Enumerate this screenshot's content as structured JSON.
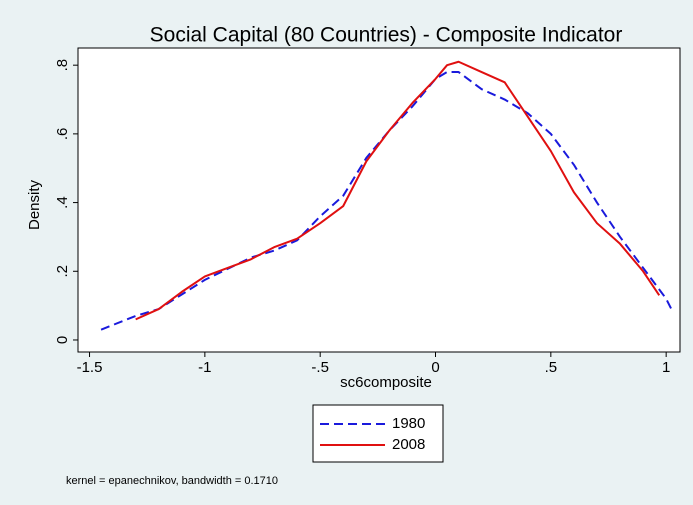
{
  "chart_data": {
    "type": "line",
    "title": "Social Capital (80 Countries) - Composite Indicator",
    "x_label": "sc6composite",
    "y_label": "Density",
    "note": "kernel = epanechnikov, bandwidth = 0.1710",
    "xlim": [
      -1.55,
      1.06
    ],
    "ylim": [
      -0.035,
      0.85
    ],
    "xticks": [
      -1.5,
      -1,
      {
        "value": -0.5,
        "label": "-.5"
      },
      0,
      {
        "value": 0.5,
        "label": ".5"
      },
      1
    ],
    "yticks": [
      0,
      {
        "value": 0.2,
        "label": ".2"
      },
      {
        "value": 0.4,
        "label": ".4"
      },
      {
        "value": 0.6,
        "label": ".6"
      },
      {
        "value": 0.8,
        "label": ".8"
      }
    ],
    "series": [
      {
        "name": "1980",
        "color": "#1a1adc",
        "dash": true,
        "x": [
          -1.45,
          -1.3,
          -1.2,
          -1.0,
          -0.8,
          -0.7,
          -0.6,
          -0.5,
          -0.4,
          -0.3,
          -0.2,
          -0.1,
          0,
          0.05,
          0.1,
          0.2,
          0.3,
          0.4,
          0.5,
          0.6,
          0.7,
          0.8,
          0.9,
          1.0,
          1.03
        ],
        "values": [
          0.03,
          0.07,
          0.09,
          0.175,
          0.24,
          0.26,
          0.29,
          0.36,
          0.42,
          0.53,
          0.61,
          0.68,
          0.76,
          0.78,
          0.78,
          0.73,
          0.7,
          0.66,
          0.6,
          0.51,
          0.4,
          0.3,
          0.21,
          0.12,
          0.08
        ]
      },
      {
        "name": "2008",
        "color": "#e01010",
        "dash": false,
        "x": [
          -1.3,
          -1.2,
          -1.1,
          -1.0,
          -0.9,
          -0.8,
          -0.7,
          -0.6,
          -0.5,
          -0.4,
          -0.3,
          -0.2,
          -0.1,
          0,
          0.05,
          0.1,
          0.2,
          0.3,
          0.4,
          0.5,
          0.6,
          0.7,
          0.8,
          0.9,
          0.97
        ],
        "values": [
          0.06,
          0.09,
          0.14,
          0.185,
          0.21,
          0.235,
          0.27,
          0.295,
          0.34,
          0.39,
          0.52,
          0.61,
          0.69,
          0.76,
          0.8,
          0.81,
          0.78,
          0.75,
          0.65,
          0.55,
          0.43,
          0.34,
          0.28,
          0.2,
          0.13
        ]
      }
    ]
  }
}
